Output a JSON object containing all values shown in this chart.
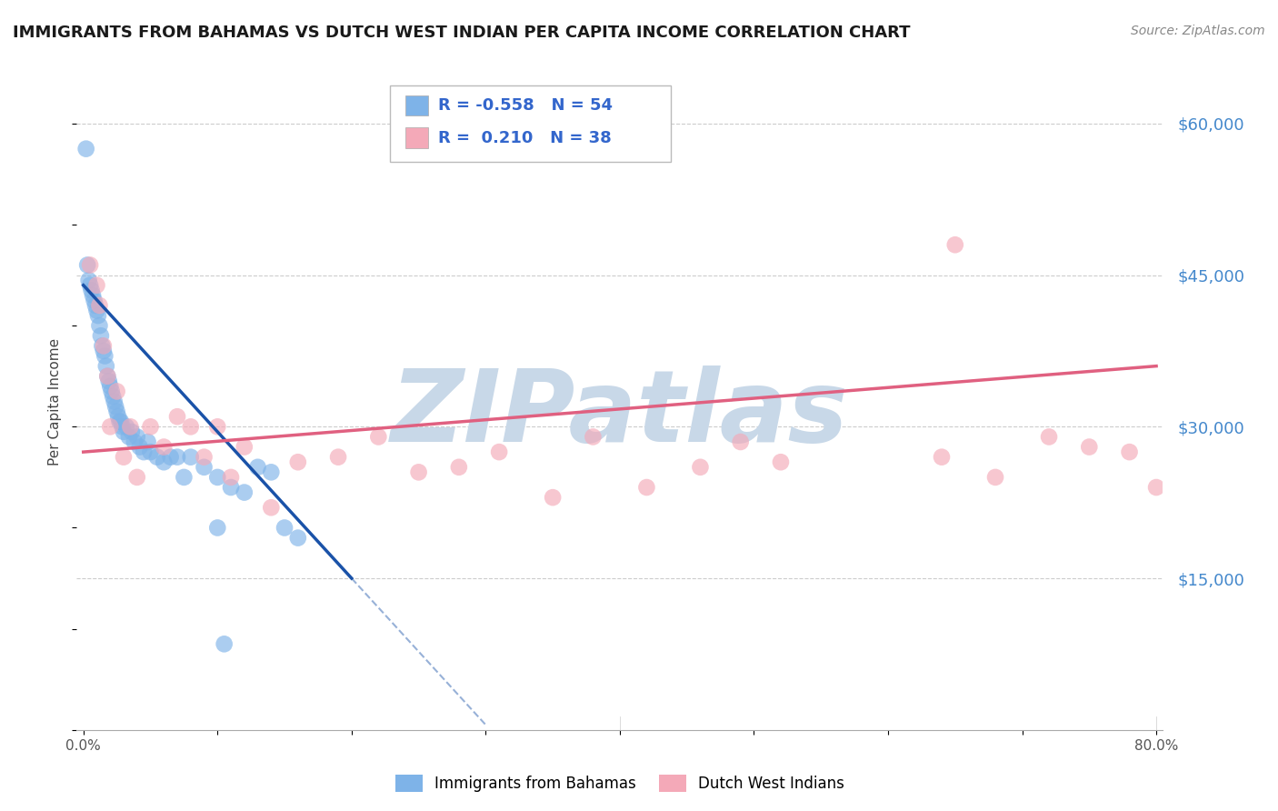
{
  "title": "IMMIGRANTS FROM BAHAMAS VS DUTCH WEST INDIAN PER CAPITA INCOME CORRELATION CHART",
  "source_text": "Source: ZipAtlas.com",
  "ylabel": "Per Capita Income",
  "xlim": [
    -0.005,
    0.805
  ],
  "ylim": [
    0,
    65000
  ],
  "xtick_vals": [
    0.0,
    0.8
  ],
  "xtick_labels": [
    "0.0%",
    "80.0%"
  ],
  "ytick_vals": [
    0,
    15000,
    30000,
    45000,
    60000
  ],
  "ytick_labels": [
    "",
    "$15,000",
    "$30,000",
    "$45,000",
    "$60,000"
  ],
  "blue_color": "#7EB3E8",
  "pink_color": "#F4A9B8",
  "blue_line_color": "#1A52A8",
  "pink_line_color": "#E06080",
  "legend_r_blue": "-0.558",
  "legend_n_blue": "54",
  "legend_r_pink": "0.210",
  "legend_n_pink": "38",
  "watermark_text": "ZIPatlas",
  "watermark_color": "#C8D8E8",
  "blue_scatter_x": [
    0.002,
    0.003,
    0.004,
    0.005,
    0.006,
    0.007,
    0.008,
    0.009,
    0.01,
    0.011,
    0.012,
    0.013,
    0.014,
    0.015,
    0.016,
    0.017,
    0.018,
    0.019,
    0.02,
    0.021,
    0.022,
    0.023,
    0.024,
    0.025,
    0.026,
    0.027,
    0.028,
    0.029,
    0.03,
    0.032,
    0.034,
    0.036,
    0.038,
    0.04,
    0.042,
    0.045,
    0.048,
    0.05,
    0.055,
    0.06,
    0.065,
    0.07,
    0.075,
    0.08,
    0.09,
    0.1,
    0.11,
    0.12,
    0.13,
    0.14,
    0.15,
    0.16,
    0.1,
    0.105
  ],
  "blue_scatter_y": [
    57500,
    46000,
    44500,
    44000,
    43500,
    43000,
    42500,
    42000,
    41500,
    41000,
    40000,
    39000,
    38000,
    37500,
    37000,
    36000,
    35000,
    34500,
    34000,
    33500,
    33000,
    32500,
    32000,
    31500,
    31000,
    30500,
    30500,
    30000,
    29500,
    30000,
    29000,
    29500,
    28500,
    29000,
    28000,
    27500,
    28500,
    27500,
    27000,
    26500,
    27000,
    27000,
    25000,
    27000,
    26000,
    25000,
    24000,
    23500,
    26000,
    25500,
    20000,
    19000,
    20000,
    8500
  ],
  "pink_scatter_x": [
    0.005,
    0.01,
    0.012,
    0.015,
    0.018,
    0.02,
    0.025,
    0.03,
    0.035,
    0.04,
    0.05,
    0.06,
    0.07,
    0.08,
    0.09,
    0.1,
    0.11,
    0.12,
    0.14,
    0.16,
    0.19,
    0.22,
    0.25,
    0.28,
    0.31,
    0.35,
    0.38,
    0.42,
    0.46,
    0.49,
    0.52,
    0.64,
    0.68,
    0.72,
    0.75,
    0.78,
    0.8,
    0.65
  ],
  "pink_scatter_y": [
    46000,
    44000,
    42000,
    38000,
    35000,
    30000,
    33500,
    27000,
    30000,
    25000,
    30000,
    28000,
    31000,
    30000,
    27000,
    30000,
    25000,
    28000,
    22000,
    26500,
    27000,
    29000,
    25500,
    26000,
    27500,
    23000,
    29000,
    24000,
    26000,
    28500,
    26500,
    27000,
    25000,
    29000,
    28000,
    27500,
    24000,
    48000
  ],
  "blue_line_x0": 0.0,
  "blue_line_y0": 44000,
  "blue_line_x1": 0.2,
  "blue_line_y1": 15000,
  "blue_line_dash_x0": 0.2,
  "blue_line_dash_y0": 15000,
  "blue_line_dash_x1": 0.22,
  "blue_line_dash_y1": 10000,
  "pink_line_x0": 0.0,
  "pink_line_y0": 27500,
  "pink_line_x1": 0.8,
  "pink_line_y1": 36000
}
